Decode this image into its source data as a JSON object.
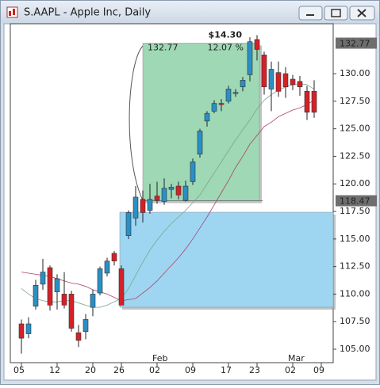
{
  "window": {
    "title": "S.AAPL - Apple Inc, Daily"
  },
  "chart_data": {
    "type": "candlestick",
    "categories": [
      "05",
      null,
      null,
      null,
      null,
      "12",
      null,
      null,
      null,
      null,
      "20",
      null,
      null,
      null,
      "26",
      null,
      null,
      null,
      null,
      "02",
      null,
      null,
      null,
      null,
      "09",
      null,
      null,
      null,
      null,
      "17",
      null,
      null,
      null,
      "23",
      null,
      null,
      null,
      null,
      "02",
      null,
      null,
      null,
      "09"
    ],
    "category_months": [
      null,
      null,
      null,
      null,
      null,
      null,
      null,
      null,
      null,
      null,
      null,
      null,
      null,
      null,
      null,
      null,
      null,
      null,
      null,
      "Feb",
      null,
      null,
      null,
      null,
      null,
      null,
      null,
      null,
      null,
      null,
      null,
      null,
      null,
      null,
      null,
      null,
      null,
      null,
      "Mar",
      null,
      null,
      null,
      null
    ],
    "open": [
      107.3,
      106.4,
      108.9,
      110.9,
      112.4,
      110.2,
      110.0,
      110.0,
      106.5,
      106.6,
      108.8,
      110.1,
      111.9,
      113.7,
      112.3,
      115.3,
      116.9,
      118.6,
      117.6,
      118.9,
      118.4,
      119.5,
      119.8,
      118.5,
      120.2,
      122.7,
      125.7,
      126.6,
      127.3,
      127.5,
      128.2,
      128.8,
      129.9,
      133.1,
      131.7,
      128.6,
      130.1,
      130.0,
      129.5,
      129.3,
      128.4,
      128.4,
      null
    ],
    "high": [
      107.7,
      107.9,
      111.3,
      113.2,
      112.6,
      111.8,
      112.0,
      110.3,
      107.2,
      108.2,
      110.4,
      112.5,
      113.3,
      113.9,
      112.6,
      117.6,
      119.8,
      119.4,
      120.0,
      120.2,
      120.5,
      120.0,
      120.2,
      120.3,
      122.3,
      125.0,
      126.6,
      127.6,
      127.7,
      128.9,
      128.6,
      129.7,
      133.3,
      133.5,
      132.0,
      131.1,
      131.1,
      130.6,
      129.9,
      129.8,
      128.9,
      129.4,
      null
    ],
    "low": [
      104.6,
      106.0,
      108.6,
      110.4,
      108.5,
      108.6,
      108.7,
      106.6,
      105.2,
      105.9,
      108.0,
      109.9,
      111.6,
      112.6,
      109.0,
      115.0,
      116.2,
      116.5,
      117.3,
      118.2,
      118.1,
      118.7,
      118.6,
      118.4,
      119.9,
      122.4,
      125.2,
      126.4,
      126.6,
      127.3,
      127.9,
      128.4,
      129.3,
      131.2,
      128.1,
      126.6,
      127.9,
      127.8,
      128.5,
      128.0,
      125.8,
      126.0,
      null
    ],
    "close": [
      106.0,
      107.3,
      110.8,
      112.0,
      109.0,
      111.4,
      109.0,
      106.9,
      105.8,
      107.7,
      110.0,
      112.3,
      113.0,
      113.0,
      109.0,
      117.4,
      118.8,
      117.4,
      118.6,
      118.5,
      119.6,
      119.7,
      119.0,
      119.8,
      122.0,
      124.8,
      126.4,
      127.3,
      127.2,
      128.6,
      128.3,
      129.4,
      132.9,
      132.2,
      128.8,
      130.4,
      128.4,
      128.8,
      129.0,
      128.8,
      126.5,
      126.5,
      null
    ],
    "up_color": "#2a8fc4",
    "down_color": "#d42027",
    "overlays": [
      {
        "color": "#b0406a",
        "values": [
          112.0,
          111.9,
          111.8,
          111.7,
          111.6,
          111.4,
          111.2,
          111.0,
          110.9,
          110.7,
          110.4,
          110.2,
          110.0,
          109.7,
          109.4,
          109.5,
          109.6,
          110.1,
          110.6,
          111.2,
          111.9,
          112.6,
          113.3,
          114.1,
          115.0,
          116.0,
          117.0,
          118.1,
          119.2,
          120.3,
          121.5,
          122.5,
          123.6,
          124.4,
          125.2,
          125.6,
          126.1,
          126.4,
          126.7,
          126.9,
          127.2,
          127.6,
          null
        ]
      },
      {
        "color": "#7fa38f",
        "values": [
          110.5,
          110.0,
          109.6,
          109.4,
          109.3,
          109.3,
          109.4,
          109.4,
          109.2,
          109.0,
          108.8,
          108.8,
          109.0,
          109.3,
          109.6,
          110.5,
          111.7,
          112.9,
          114.0,
          114.9,
          115.7,
          116.4,
          117.0,
          117.6,
          118.3,
          119.0,
          120.0,
          121.0,
          122.0,
          123.0,
          124.0,
          124.9,
          125.8,
          126.8,
          127.6,
          128.1,
          128.5,
          128.8,
          129.0,
          129.1,
          129.0,
          128.6,
          null
        ]
      }
    ],
    "ylim": [
      103.78,
      134.53
    ],
    "yticks": [
      {
        "value": 105,
        "label": "105.00"
      },
      {
        "value": 107.5,
        "label": "107.50"
      },
      {
        "value": 110,
        "label": "110.00"
      },
      {
        "value": 112.5,
        "label": "112.50"
      },
      {
        "value": 115,
        "label": "115.00"
      },
      {
        "value": 117.5,
        "label": "117.50"
      },
      {
        "value": 120,
        "label": "120.00"
      },
      {
        "value": 122.5,
        "label": "122.50"
      },
      {
        "value": 125,
        "label": "125.00"
      },
      {
        "value": 127.5,
        "label": "127.50"
      },
      {
        "value": 130,
        "label": "130.00"
      }
    ],
    "price_markers": [
      {
        "value": 132.77,
        "label": "132.77"
      },
      {
        "value": 118.47,
        "label": "118.47"
      }
    ],
    "zones": [
      {
        "high": 132.77,
        "low": 118.47,
        "color": "#9ed8b4",
        "high_label": "132.77",
        "percent_label": "12.07 %",
        "change_label": "$14.30"
      },
      {
        "high": 117.43,
        "low": 108.81,
        "color": "#9ed6f2"
      }
    ]
  }
}
